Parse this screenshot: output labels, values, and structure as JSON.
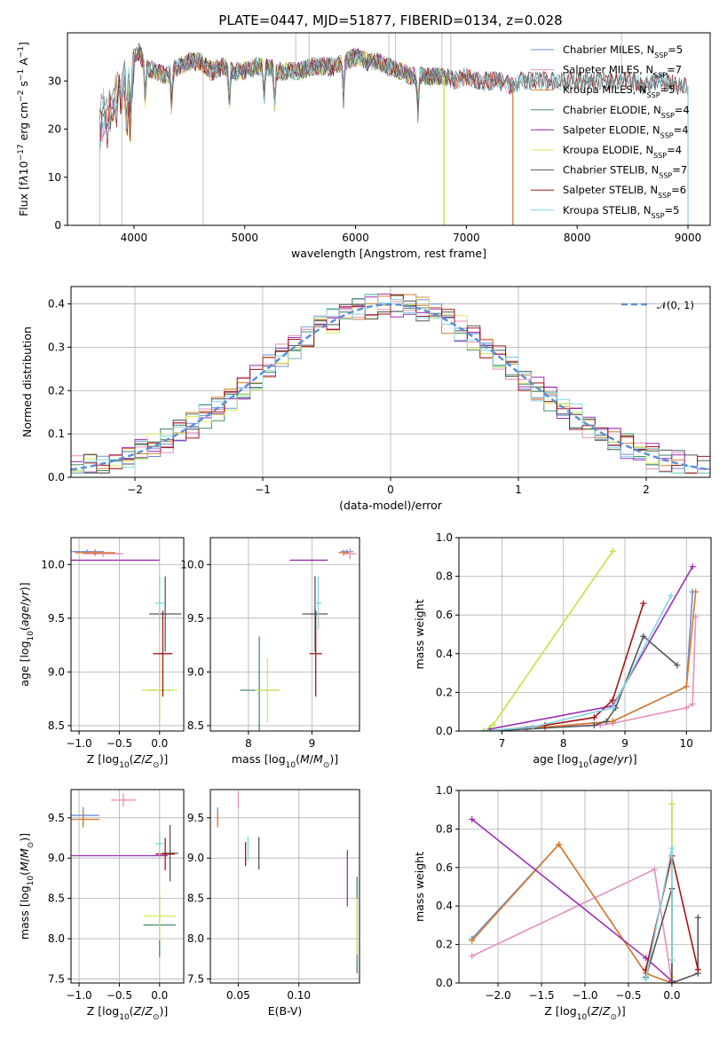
{
  "title": "PLATE=0447, MJD=51877, FIBERID=0134, z=0.028",
  "colors": {
    "Chabrier MILES": "#6a8fd6",
    "Salpeter MILES": "#e58fbf",
    "Kroupa MILES": "#d97b2a",
    "Chabrier ELODIE": "#4a8a6a",
    "Salpeter ELODIE": "#9b2fb5",
    "Kroupa ELODIE": "#d5ea55",
    "Chabrier STELIB": "#555555",
    "Salpeter STELIB": "#a51515",
    "Kroupa STELIB": "#7fd6e3",
    "gaussian": "#5b8fd6"
  },
  "legend_top": [
    "Chabrier MILES, N<sub>SSP</sub>=5",
    "Salpeter MILES, N<sub>SSP</sub>=7",
    "Kroupa MILES, N<sub>SSP</sub>=5",
    "Chabrier ELODIE, N<sub>SSP</sub>=4",
    "Salpeter ELODIE, N<sub>SSP</sub>=4",
    "Kroupa ELODIE, N<sub>SSP</sub>=4",
    "Chabrier STELIB, N<sub>SSP</sub>=7",
    "Salpeter STELIB, N<sub>SSP</sub>=6",
    "Kroupa STELIB, N<sub>SSP</sub>=5"
  ],
  "legend_hist": "𝒩(0, 1)",
  "chart_data": [
    {
      "type": "line",
      "title": "PLATE=0447, MJD=51877, FIBERID=0134, z=0.028",
      "xlabel": "wavelength [Angstrom, rest frame]",
      "ylabel": "Flux [f<tspan font-style='italic'>λ</tspan>10<tspan baseline-shift='super' font-size='9'>−17</tspan> erg cm<tspan baseline-shift='super' font-size='9'>−2</tspan> s<tspan baseline-shift='super' font-size='9'>−1</tspan> A<tspan baseline-shift='super' font-size='9'>−1</tspan>]",
      "xlim": [
        3400,
        9200
      ],
      "ylim": [
        0,
        40
      ],
      "xticks": [
        4000,
        5000,
        6000,
        7000,
        8000,
        9000
      ],
      "yticks": [
        0,
        10,
        20,
        30
      ],
      "spectrum": {
        "x": [
          3690,
          3720,
          3760,
          3800,
          3840,
          3880,
          3920,
          3970,
          4000,
          4050,
          4100,
          4200,
          4300,
          4400,
          4500,
          4600,
          4700,
          4800,
          4900,
          5000,
          5100,
          5200,
          5300,
          5400,
          5500,
          5600,
          5700,
          5800,
          5900,
          6000,
          6100,
          6200,
          6300,
          6400,
          6500,
          6600,
          6700,
          6800,
          6900,
          7000,
          7100,
          7200,
          7300,
          7400,
          7500,
          7600,
          7700,
          7800,
          7900,
          8000,
          8100,
          8200,
          8300,
          8400,
          8500,
          8600,
          8700,
          8800,
          8900
        ],
        "y": [
          24,
          27,
          25,
          28,
          30,
          31,
          33,
          32,
          35,
          36,
          33,
          32,
          31,
          33,
          34,
          34,
          32,
          33,
          32,
          32,
          33,
          33,
          32,
          32,
          32,
          33,
          33,
          33,
          34,
          35,
          34,
          34,
          33,
          32,
          31,
          31,
          31,
          31,
          30,
          31,
          30,
          30,
          30,
          29,
          30,
          30,
          30,
          30,
          30,
          30,
          30,
          30,
          30,
          30,
          30,
          29,
          30,
          30,
          29
        ]
      },
      "models": [
        {
          "name": "Chabrier MILES",
          "xrange": [
            3540,
            7420
          ]
        },
        {
          "name": "Salpeter MILES",
          "xrange": [
            3540,
            7420
          ]
        },
        {
          "name": "Kroupa MILES",
          "xrange": [
            3540,
            7420
          ]
        },
        {
          "name": "Chabrier ELODIE",
          "xrange": [
            3900,
            6800
          ]
        },
        {
          "name": "Salpeter ELODIE",
          "xrange": [
            3900,
            6800
          ]
        },
        {
          "name": "Kroupa ELODIE",
          "xrange": [
            3900,
            6800
          ]
        },
        {
          "name": "Chabrier STELIB",
          "xrange": [
            3700,
            9000
          ]
        },
        {
          "name": "Salpeter STELIB",
          "xrange": [
            3700,
            9000
          ]
        },
        {
          "name": "Kroupa STELIB",
          "xrange": [
            3700,
            9000
          ]
        }
      ]
    },
    {
      "type": "line",
      "xlabel": "(data-model)/error",
      "ylabel": "Normed distribution",
      "xlim": [
        -2.5,
        2.5
      ],
      "ylim": [
        0,
        0.44
      ],
      "xticks": [
        -2,
        -1,
        0,
        1,
        2
      ],
      "yticks": [
        0.0,
        0.1,
        0.2,
        0.3,
        0.4
      ],
      "bins": 50,
      "series": [
        {
          "name": "N(0,1)",
          "style": "dashed",
          "function": "gaussian"
        }
      ]
    },
    {
      "type": "scatter",
      "xlabel": "Z [log<tspan baseline-shift='sub' font-size='9'>10</tspan>(<tspan font-style='italic'>Z</tspan>/<tspan font-style='italic'>Z</tspan><tspan baseline-shift='sub' font-size='9'>⊙</tspan>)]",
      "ylabel": "age  [log<tspan baseline-shift='sub' font-size='9'>10</tspan>(<tspan font-style='italic'>age</tspan>/<tspan font-style='italic'>yr</tspan>)]",
      "xlim": [
        -1.1,
        0.3
      ],
      "ylim": [
        8.45,
        10.25
      ],
      "xticks": [
        -1.0,
        -0.5,
        0.0
      ],
      "yticks": [
        8.5,
        9.0,
        9.5,
        10.0
      ],
      "points": [
        {
          "s": "Chabrier MILES",
          "x": -0.9,
          "y": 10.12,
          "xe": 0.2,
          "ye": 0.02
        },
        {
          "s": "Salpeter MILES",
          "x": -0.7,
          "y": 10.1,
          "xe": 0.25,
          "ye": 0.03
        },
        {
          "s": "Kroupa MILES",
          "x": -0.8,
          "y": 10.11,
          "xe": 0.25,
          "ye": 0.03
        },
        {
          "s": "Chabrier ELODIE",
          "x": 0.0,
          "y": 8.83,
          "xe": 0.15,
          "ye": 0.3
        },
        {
          "s": "Salpeter ELODIE",
          "x": -0.55,
          "y": 10.04,
          "xe": 0.55,
          "ye": 0.0
        },
        {
          "s": "Kroupa ELODIE",
          "x": 0.0,
          "y": 8.83,
          "xe": 0.22,
          "ye": 0.3
        },
        {
          "s": "Chabrier STELIB",
          "x": 0.07,
          "y": 9.54,
          "xe": 0.2,
          "ye": 0.35
        },
        {
          "s": "Salpeter STELIB",
          "x": 0.04,
          "y": 9.17,
          "xe": 0.12,
          "ye": 0.4
        },
        {
          "s": "Kroupa STELIB",
          "x": 0.0,
          "y": 9.64,
          "xe": 0.05,
          "ye": 0.25
        }
      ]
    },
    {
      "type": "scatter",
      "xlabel": "mass [log<tspan baseline-shift='sub' font-size='9'>10</tspan>(<tspan font-style='italic'>M</tspan>/<tspan font-style='italic'>M</tspan><tspan baseline-shift='sub' font-size='9'>⊙</tspan>)]",
      "xlim": [
        7.4,
        9.75
      ],
      "ylim": [
        8.45,
        10.25
      ],
      "xticks": [
        8,
        9
      ],
      "yticks": [
        8.5,
        9.0,
        9.5,
        10.0
      ],
      "points": [
        {
          "s": "Chabrier MILES",
          "x": 9.55,
          "y": 10.12,
          "xe": 0.1,
          "ye": 0.02
        },
        {
          "s": "Salpeter MILES",
          "x": 9.6,
          "y": 10.1,
          "xe": 0.1,
          "ye": 0.05
        },
        {
          "s": "Kroupa MILES",
          "x": 9.5,
          "y": 10.11,
          "xe": 0.08,
          "ye": 0.03
        },
        {
          "s": "Chabrier ELODIE",
          "x": 8.17,
          "y": 8.83,
          "xe": 0.3,
          "ye": 0.5
        },
        {
          "s": "Salpeter ELODIE",
          "x": 8.95,
          "y": 10.04,
          "xe": 0.3,
          "ye": 0.0
        },
        {
          "s": "Kroupa ELODIE",
          "x": 8.3,
          "y": 8.83,
          "xe": 0.2,
          "ye": 0.3
        },
        {
          "s": "Chabrier STELIB",
          "x": 9.05,
          "y": 9.54,
          "xe": 0.2,
          "ye": 0.35
        },
        {
          "s": "Salpeter STELIB",
          "x": 9.06,
          "y": 9.17,
          "xe": 0.1,
          "ye": 0.4
        },
        {
          "s": "Kroupa STELIB",
          "x": 9.1,
          "y": 9.64,
          "xe": 0.05,
          "ye": 0.25
        }
      ]
    },
    {
      "type": "line",
      "xlabel": "age  [log<tspan baseline-shift='sub' font-size='9'>10</tspan>(<tspan font-style='italic'>age</tspan>/<tspan font-style='italic'>yr</tspan>)]",
      "ylabel": "mass weight",
      "xlim": [
        6.3,
        10.4
      ],
      "ylim": [
        0,
        1.0
      ],
      "xticks": [
        7,
        8,
        9,
        10
      ],
      "yticks": [
        0.0,
        0.2,
        0.4,
        0.6,
        0.8,
        1.0
      ],
      "series": [
        {
          "name": "Chabrier MILES",
          "x": [
            6.7,
            7.7,
            8.8,
            10.0,
            10.1
          ],
          "y": [
            0.0,
            0.02,
            0.05,
            0.23,
            0.72
          ]
        },
        {
          "name": "Salpeter MILES",
          "x": [
            6.7,
            7.7,
            8.6,
            8.8,
            10.0,
            10.1,
            10.15
          ],
          "y": [
            0.0,
            0.02,
            0.03,
            0.04,
            0.12,
            0.14,
            0.59
          ]
        },
        {
          "name": "Kroupa MILES",
          "x": [
            6.7,
            7.7,
            8.8,
            10.0,
            10.15
          ],
          "y": [
            0.0,
            0.02,
            0.05,
            0.23,
            0.72
          ]
        },
        {
          "name": "Chabrier ELODIE",
          "x": [
            6.7,
            6.85,
            8.8
          ],
          "y": [
            0.0,
            0.03,
            0.93
          ]
        },
        {
          "name": "Salpeter ELODIE",
          "x": [
            6.8,
            8.8,
            10.1
          ],
          "y": [
            0.01,
            0.13,
            0.85
          ]
        },
        {
          "name": "Kroupa ELODIE",
          "x": [
            6.7,
            6.85,
            8.8
          ],
          "y": [
            0.0,
            0.03,
            0.93
          ]
        },
        {
          "name": "Chabrier STELIB",
          "x": [
            6.7,
            7.4,
            8.5,
            8.7,
            8.85,
            9.3,
            9.85
          ],
          "y": [
            0.0,
            0.01,
            0.03,
            0.05,
            0.12,
            0.49,
            0.34
          ]
        },
        {
          "name": "Salpeter STELIB",
          "x": [
            6.8,
            7.7,
            8.5,
            8.8,
            9.3
          ],
          "y": [
            0.0,
            0.03,
            0.07,
            0.16,
            0.66
          ]
        },
        {
          "name": "Kroupa STELIB",
          "x": [
            6.7,
            7.5,
            8.8,
            9.75
          ],
          "y": [
            0.0,
            0.02,
            0.12,
            0.7
          ]
        }
      ]
    },
    {
      "type": "scatter",
      "xlabel": "Z [log<tspan baseline-shift='sub' font-size='9'>10</tspan>(<tspan font-style='italic'>Z</tspan>/<tspan font-style='italic'>Z</tspan><tspan baseline-shift='sub' font-size='9'>⊙</tspan>)]",
      "ylabel": "mass [log<tspan baseline-shift='sub' font-size='9'>10</tspan>(<tspan font-style='italic'>M</tspan>/<tspan font-style='italic'>M</tspan><tspan baseline-shift='sub' font-size='9'>⊙</tspan>)]",
      "xlim": [
        -1.1,
        0.3
      ],
      "ylim": [
        7.45,
        9.85
      ],
      "xticks": [
        -1.0,
        -0.5,
        0.0
      ],
      "yticks": [
        7.5,
        8.0,
        8.5,
        9.0,
        9.5
      ],
      "points": [
        {
          "s": "Chabrier MILES",
          "x": -0.95,
          "y": 9.53,
          "xe": 0.2,
          "ye": 0.1
        },
        {
          "s": "Salpeter MILES",
          "x": -0.45,
          "y": 9.72,
          "xe": 0.15,
          "ye": 0.08
        },
        {
          "s": "Kroupa MILES",
          "x": -0.95,
          "y": 9.48,
          "xe": 0.2,
          "ye": 0.1
        },
        {
          "s": "Chabrier ELODIE",
          "x": 0.0,
          "y": 8.17,
          "xe": 0.2,
          "ye": 0.4
        },
        {
          "s": "Salpeter ELODIE",
          "x": -0.5,
          "y": 9.03,
          "xe": 0.6,
          "ye": 0.0
        },
        {
          "s": "Kroupa ELODIE",
          "x": 0.0,
          "y": 8.28,
          "xe": 0.2,
          "ye": 0.3
        },
        {
          "s": "Chabrier STELIB",
          "x": 0.13,
          "y": 9.06,
          "xe": 0.1,
          "ye": 0.35
        },
        {
          "s": "Salpeter STELIB",
          "x": 0.07,
          "y": 9.05,
          "xe": 0.12,
          "ye": 0.2
        },
        {
          "s": "Kroupa STELIB",
          "x": 0.0,
          "y": 9.18,
          "xe": 0.05,
          "ye": 0.15
        }
      ]
    },
    {
      "type": "scatter",
      "xlabel": "E(B-V)",
      "xlim": [
        0.027,
        0.15
      ],
      "ylim": [
        7.45,
        9.85
      ],
      "xticks": [
        0.05,
        0.1
      ],
      "yticks": [
        7.5,
        8.0,
        8.5,
        9.0,
        9.5
      ],
      "points": [
        {
          "s": "Chabrier MILES",
          "x": 0.033,
          "y": 9.53,
          "xe": 0.0,
          "ye": 0.1
        },
        {
          "s": "Salpeter MILES",
          "x": 0.05,
          "y": 9.72,
          "xe": 0.0,
          "ye": 0.1
        },
        {
          "s": "Kroupa MILES",
          "x": 0.033,
          "y": 9.48,
          "xe": 0.0,
          "ye": 0.1
        },
        {
          "s": "Chabrier ELODIE",
          "x": 0.148,
          "y": 8.17,
          "xe": 0.0,
          "ye": 0.6
        },
        {
          "s": "Salpeter ELODIE",
          "x": 0.14,
          "y": 8.75,
          "xe": 0.0,
          "ye": 0.35
        },
        {
          "s": "Kroupa ELODIE",
          "x": 0.148,
          "y": 8.15,
          "xe": 0.0,
          "ye": 0.35
        },
        {
          "s": "Chabrier STELIB",
          "x": 0.067,
          "y": 9.06,
          "xe": 0.0,
          "ye": 0.2
        },
        {
          "s": "Salpeter STELIB",
          "x": 0.056,
          "y": 9.05,
          "xe": 0.0,
          "ye": 0.15
        },
        {
          "s": "Kroupa STELIB",
          "x": 0.058,
          "y": 9.12,
          "xe": 0.0,
          "ye": 0.15
        }
      ]
    },
    {
      "type": "line",
      "xlabel": "Z [log<tspan baseline-shift='sub' font-size='9'>10</tspan>(<tspan font-style='italic'>Z</tspan>/<tspan font-style='italic'>Z</tspan><tspan baseline-shift='sub' font-size='9'>⊙</tspan>)]",
      "ylabel": "mass weight",
      "xlim": [
        -2.45,
        0.45
      ],
      "ylim": [
        0,
        1.0
      ],
      "xticks": [
        -2.0,
        -1.5,
        -1.0,
        -0.5,
        0.0
      ],
      "yticks": [
        0.0,
        0.2,
        0.4,
        0.6,
        0.8,
        1.0
      ],
      "series": [
        {
          "name": "Chabrier MILES",
          "x": [
            -2.3,
            -1.3,
            -0.3,
            0.0
          ],
          "y": [
            0.23,
            0.72,
            0.05,
            0.0
          ]
        },
        {
          "name": "Salpeter MILES",
          "x": [
            -2.3,
            -0.2,
            0.0
          ],
          "y": [
            0.14,
            0.59,
            0.0
          ]
        },
        {
          "name": "Kroupa MILES",
          "x": [
            -2.3,
            -1.3,
            -0.3,
            0.0
          ],
          "y": [
            0.22,
            0.72,
            0.05,
            0.0
          ]
        },
        {
          "name": "Chabrier ELODIE",
          "x": [
            0.0,
            0.0,
            0.0
          ],
          "y": [
            0.0,
            0.03,
            0.93
          ]
        },
        {
          "name": "Salpeter ELODIE",
          "x": [
            -2.3,
            -0.3,
            0.0
          ],
          "y": [
            0.85,
            0.13,
            0.01
          ]
        },
        {
          "name": "Kroupa ELODIE",
          "x": [
            0.0,
            0.0,
            0.0
          ],
          "y": [
            0.0,
            0.03,
            0.93
          ]
        },
        {
          "name": "Chabrier STELIB",
          "x": [
            -0.3,
            0.0,
            0.0,
            0.3,
            0.3
          ],
          "y": [
            0.03,
            0.49,
            0.0,
            0.05,
            0.34
          ]
        },
        {
          "name": "Salpeter STELIB",
          "x": [
            -0.3,
            0.0,
            0.3
          ],
          "y": [
            0.07,
            0.66,
            0.07
          ]
        },
        {
          "name": "Kroupa STELIB",
          "x": [
            -0.3,
            0.0,
            0.0
          ],
          "y": [
            0.02,
            0.7,
            0.12
          ]
        }
      ]
    }
  ]
}
